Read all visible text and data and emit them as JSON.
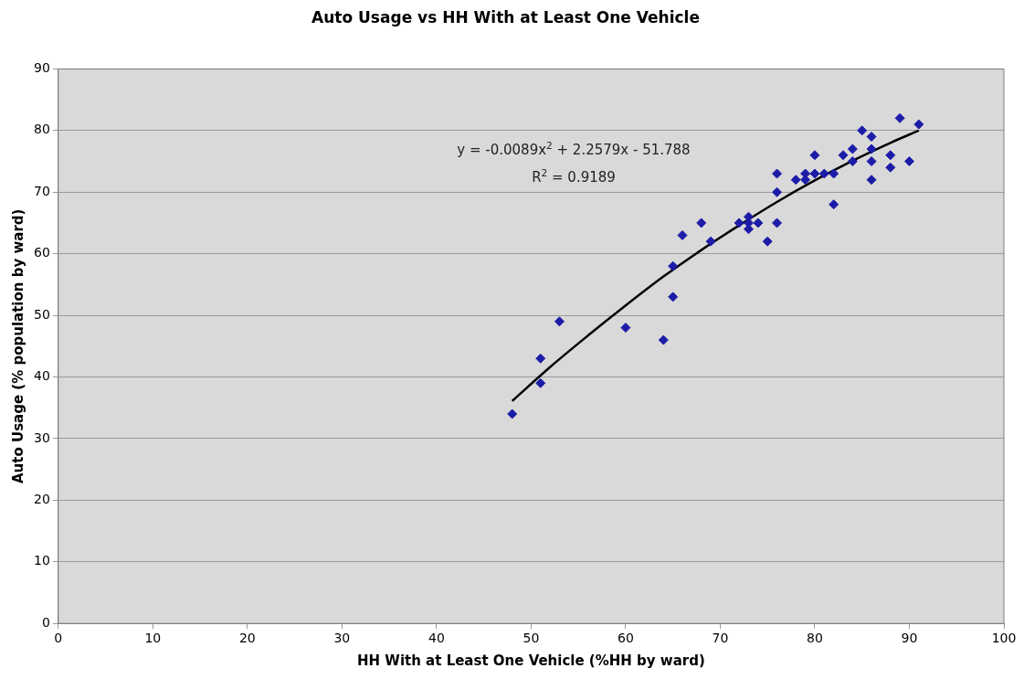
{
  "chart_data": {
    "type": "scatter",
    "title": "Auto Usage vs HH With at Least One Vehicle",
    "xlabel": "HH With at Least One Vehicle (%HH by ward)",
    "ylabel": "Auto Usage (% population by ward)",
    "xlim": [
      0,
      100
    ],
    "xticks": [
      0,
      10,
      20,
      30,
      40,
      50,
      60,
      70,
      80,
      90,
      100
    ],
    "ylim": [
      0,
      90
    ],
    "yticks": [
      0,
      10,
      20,
      30,
      40,
      50,
      60,
      70,
      80,
      90
    ],
    "grid": "y",
    "legend": false,
    "marker": "diamond",
    "annotations": [
      "y = -0.0089x$^{2}$ + 2.2579x - 51.788",
      "R$^{2}$ = 0.9189"
    ],
    "series": [
      {
        "color": "#1c1ca8",
        "x": [
          48,
          51,
          51,
          53,
          60,
          64,
          65,
          65,
          66,
          68,
          69,
          72,
          73,
          73,
          73,
          74,
          75,
          76,
          76,
          76,
          78,
          79,
          79,
          80,
          80,
          81,
          82,
          82,
          83,
          84,
          84,
          85,
          86,
          86,
          86,
          86,
          88,
          88,
          89,
          90,
          91
        ],
        "values": [
          34,
          43,
          39,
          49,
          48,
          46,
          58,
          53,
          63,
          65,
          62,
          65,
          66,
          65,
          64,
          65,
          62,
          73,
          70,
          65,
          72,
          73,
          72,
          76,
          73,
          73,
          73,
          68,
          76,
          77,
          75,
          80,
          79,
          77,
          75,
          72,
          76,
          74,
          82,
          75,
          81
        ]
      },
      {
        "type": "line",
        "color": "#000000",
        "marker": "none",
        "x": [
          48,
          52,
          56,
          60,
          64,
          68,
          72,
          76,
          80,
          84,
          88,
          91
        ],
        "values": [
          36.1,
          41.6,
          46.7,
          51.6,
          56.3,
          60.6,
          64.6,
          68.4,
          71.9,
          75.1,
          78.0,
          80.0
        ]
      }
    ]
  }
}
